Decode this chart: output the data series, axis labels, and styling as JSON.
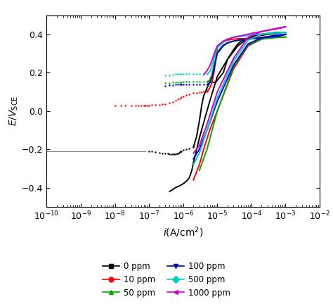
{
  "xlabel": "$i$(A/cm$^2$)",
  "ylabel": "$E/V_\\mathrm{SCE}$",
  "xlim": [
    1e-10,
    0.01
  ],
  "ylim": [
    -0.5,
    0.5
  ],
  "yticks": [
    -0.4,
    -0.2,
    0.0,
    0.2,
    0.4
  ],
  "curves": {
    "0ppm": {
      "color": "black",
      "corr_line": {
        "i": [
          1e-10,
          3e-10,
          1e-09,
          3e-09,
          1e-08,
          3e-08,
          8e-08
        ],
        "E": [
          -0.21,
          -0.21,
          -0.21,
          -0.21,
          -0.21,
          -0.21,
          -0.21
        ]
      },
      "forward_dots": {
        "i": [
          1e-07,
          1.2e-07,
          1.5e-07,
          2e-07,
          2.5e-07,
          3e-07,
          3.5e-07,
          4e-07,
          4.5e-07,
          5e-07,
          5.5e-07,
          6e-07,
          6.5e-07,
          7e-07,
          7.5e-07,
          8e-07,
          8.5e-07,
          9e-07,
          1e-06,
          1.2e-06,
          1.5e-06,
          2e-06
        ],
        "E": [
          -0.21,
          -0.212,
          -0.215,
          -0.218,
          -0.22,
          -0.222,
          -0.223,
          -0.224,
          -0.225,
          -0.225,
          -0.225,
          -0.224,
          -0.222,
          -0.22,
          -0.218,
          -0.215,
          -0.212,
          -0.21,
          -0.205,
          -0.2,
          -0.195,
          -0.19
        ]
      },
      "anodic": {
        "i": [
          2e-06,
          2.5e-06,
          3e-06,
          3.5e-06,
          4e-06,
          4.5e-06,
          5e-06,
          6e-06
        ],
        "E": [
          -0.19,
          -0.13,
          -0.05,
          0.03,
          0.08,
          0.1,
          0.12,
          0.15
        ]
      },
      "transpassive": {
        "i": [
          6e-06,
          7e-06,
          8e-06,
          9e-06,
          1e-05,
          1.5e-05,
          2e-05,
          3e-05,
          4e-05,
          5e-05,
          8e-05,
          0.0001,
          0.0002,
          0.0003,
          0.0005,
          0.0008,
          0.001
        ],
        "E": [
          0.15,
          0.15,
          0.15,
          0.15,
          0.16,
          0.2,
          0.27,
          0.32,
          0.35,
          0.365,
          0.38,
          0.39,
          0.395,
          0.4,
          0.405,
          0.41,
          0.41
        ]
      },
      "reverse": {
        "i": [
          0.001,
          0.0005,
          0.0002,
          8e-05,
          4e-05,
          2e-05,
          1e-05,
          6e-06,
          4e-06,
          3e-06,
          2.5e-06,
          2e-06,
          1.8e-06,
          1.5e-06,
          1.2e-06,
          1e-06,
          8e-07,
          6e-07,
          5e-07,
          4e-07
        ],
        "E": [
          0.41,
          0.41,
          0.4,
          0.38,
          0.34,
          0.27,
          0.18,
          0.05,
          -0.06,
          -0.14,
          -0.2,
          -0.27,
          -0.31,
          -0.35,
          -0.37,
          -0.38,
          -0.39,
          -0.4,
          -0.41,
          -0.42
        ]
      }
    },
    "10ppm": {
      "color": "red",
      "forward_dots": {
        "i": [
          1e-08,
          1.5e-08,
          2e-08,
          3e-08,
          4e-08,
          5e-08,
          6e-08,
          7e-08,
          8e-08,
          9e-08,
          1e-07,
          1.2e-07,
          1.5e-07,
          2e-07,
          2.5e-07,
          3e-07,
          4e-07,
          5e-07,
          6e-07,
          7e-07,
          8e-07,
          9e-07,
          1e-06,
          1.2e-06,
          1.5e-06,
          2e-06,
          2.5e-06,
          3e-06,
          3.5e-06,
          4e-06,
          5e-06
        ],
        "E": [
          0.03,
          0.03,
          0.03,
          0.03,
          0.03,
          0.03,
          0.03,
          0.03,
          0.03,
          0.03,
          0.03,
          0.031,
          0.032,
          0.033,
          0.035,
          0.037,
          0.042,
          0.048,
          0.054,
          0.06,
          0.066,
          0.072,
          0.077,
          0.082,
          0.088,
          0.093,
          0.096,
          0.098,
          0.099,
          0.1,
          0.1
        ]
      },
      "anodic": {
        "i": [
          5e-06,
          6e-06,
          7e-06,
          8e-06,
          9e-06,
          1e-05,
          1.5e-05,
          2e-05,
          3e-05,
          4e-05,
          6e-05,
          8e-05,
          0.0001,
          0.0002,
          0.0004,
          0.0006,
          0.0008,
          0.001
        ],
        "E": [
          0.1,
          0.12,
          0.15,
          0.2,
          0.27,
          0.33,
          0.36,
          0.37,
          0.375,
          0.377,
          0.378,
          0.379,
          0.38,
          0.385,
          0.39,
          0.392,
          0.395,
          0.4
        ]
      },
      "reverse": {
        "i": [
          0.001,
          0.0005,
          0.0002,
          8e-05,
          3e-05,
          1e-05,
          6e-06,
          4e-06,
          3e-06,
          2e-06
        ],
        "E": [
          0.4,
          0.39,
          0.375,
          0.34,
          0.22,
          0.0,
          -0.1,
          -0.2,
          -0.28,
          -0.36
        ]
      }
    },
    "50ppm": {
      "color": "#00aa00",
      "forward_dots": {
        "i": [
          3e-07,
          4e-07,
          5e-07,
          6e-07,
          7e-07,
          8e-07,
          9e-07,
          1e-06,
          1.2e-06,
          1.5e-06,
          2e-06,
          2.5e-06,
          3e-06,
          4e-06,
          5e-06
        ],
        "E": [
          0.145,
          0.147,
          0.149,
          0.15,
          0.151,
          0.151,
          0.151,
          0.152,
          0.152,
          0.152,
          0.152,
          0.152,
          0.152,
          0.152,
          0.152
        ]
      },
      "anodic": {
        "i": [
          5e-06,
          6e-06,
          7e-06,
          8e-06,
          1e-05,
          1.5e-05,
          2e-05,
          3e-05,
          5e-05,
          8e-05,
          0.0001,
          0.0002,
          0.0004,
          0.0006,
          0.0008,
          0.001
        ],
        "E": [
          0.152,
          0.16,
          0.19,
          0.24,
          0.31,
          0.345,
          0.357,
          0.365,
          0.372,
          0.375,
          0.376,
          0.38,
          0.383,
          0.384,
          0.385,
          0.386
        ]
      },
      "reverse": {
        "i": [
          0.001,
          0.0005,
          0.0002,
          8e-05,
          3e-05,
          1e-05,
          5e-06,
          3e-06
        ],
        "E": [
          0.386,
          0.383,
          0.375,
          0.345,
          0.23,
          0.0,
          -0.2,
          -0.31
        ]
      }
    },
    "100ppm": {
      "color": "#0000cc",
      "forward_dots": {
        "i": [
          3e-07,
          4e-07,
          5e-07,
          6e-07,
          7e-07,
          8e-07,
          9e-07,
          1e-06,
          1.2e-06,
          1.5e-06,
          2e-06,
          2.5e-06,
          3e-06,
          4e-06,
          5e-06
        ],
        "E": [
          0.13,
          0.133,
          0.135,
          0.137,
          0.138,
          0.138,
          0.138,
          0.138,
          0.138,
          0.138,
          0.138,
          0.138,
          0.138,
          0.138,
          0.138
        ]
      },
      "anodic": {
        "i": [
          5e-06,
          6e-06,
          7e-06,
          8e-06,
          1e-05,
          1.5e-05,
          2e-05,
          3e-05,
          5e-05,
          8e-05,
          0.0001,
          0.0002,
          0.0004,
          0.0006,
          0.0008,
          0.001
        ],
        "E": [
          0.138,
          0.148,
          0.175,
          0.22,
          0.3,
          0.34,
          0.355,
          0.365,
          0.372,
          0.375,
          0.378,
          0.382,
          0.387,
          0.39,
          0.395,
          0.4
        ]
      },
      "reverse": {
        "i": [
          0.001,
          0.0005,
          0.0002,
          8e-05,
          3e-05,
          1e-05,
          5e-06,
          3e-06,
          2e-06
        ],
        "E": [
          0.4,
          0.395,
          0.382,
          0.35,
          0.24,
          0.05,
          -0.1,
          -0.2,
          -0.25
        ]
      }
    },
    "500ppm": {
      "color": "#00cccc",
      "forward_dots": {
        "i": [
          3e-07,
          4e-07,
          5e-07,
          6e-07,
          7e-07,
          8e-07,
          9e-07,
          1e-06,
          1.2e-06,
          1.5e-06,
          2e-06,
          2.5e-06,
          3e-06,
          4e-06,
          5e-06
        ],
        "E": [
          0.185,
          0.188,
          0.19,
          0.192,
          0.192,
          0.192,
          0.192,
          0.192,
          0.192,
          0.192,
          0.192,
          0.192,
          0.192,
          0.192,
          0.192
        ]
      },
      "anodic": {
        "i": [
          5e-06,
          6e-06,
          7e-06,
          8e-06,
          1e-05,
          1.5e-05,
          2e-05,
          3e-05,
          5e-05,
          8e-05,
          0.0001,
          0.0002,
          0.0004,
          0.0006,
          0.0008,
          0.001
        ],
        "E": [
          0.192,
          0.205,
          0.235,
          0.275,
          0.33,
          0.36,
          0.375,
          0.385,
          0.39,
          0.395,
          0.398,
          0.402,
          0.406,
          0.408,
          0.41,
          0.41
        ]
      },
      "reverse": {
        "i": [
          0.001,
          0.0005,
          0.0002,
          8e-05,
          3e-05,
          1e-05,
          5e-06,
          3e-06,
          2e-06
        ],
        "E": [
          0.41,
          0.408,
          0.4,
          0.37,
          0.26,
          0.07,
          -0.1,
          -0.22,
          -0.28
        ]
      }
    },
    "1000ppm": {
      "color": "#cc00cc",
      "anodic": {
        "i": [
          4e-06,
          5e-06,
          6e-06,
          7e-06,
          8e-06,
          1e-05,
          1.5e-05,
          2e-05,
          3e-05,
          5e-05,
          8e-05,
          0.0001,
          0.0002,
          0.0004,
          0.0006,
          0.0008,
          0.001
        ],
        "E": [
          0.19,
          0.21,
          0.235,
          0.265,
          0.295,
          0.34,
          0.365,
          0.375,
          0.385,
          0.393,
          0.4,
          0.405,
          0.415,
          0.425,
          0.43,
          0.435,
          0.44
        ]
      },
      "reverse": {
        "i": [
          0.001,
          0.0005,
          0.0002,
          8e-05,
          3e-05,
          1e-05,
          5e-06,
          3e-06,
          2e-06
        ],
        "E": [
          0.44,
          0.43,
          0.415,
          0.385,
          0.275,
          0.1,
          -0.07,
          -0.18,
          -0.22
        ]
      }
    }
  },
  "legend_entries": [
    {
      "label": "0 ppm",
      "color": "black",
      "marker": "s"
    },
    {
      "label": "10 ppm",
      "color": "red",
      "marker": "o"
    },
    {
      "label": "50 ppm",
      "color": "#00aa00",
      "marker": "^"
    },
    {
      "label": "100 ppm",
      "color": "#0000cc",
      "marker": "v"
    },
    {
      "label": "500 ppm",
      "color": "#00cccc",
      "marker": "D"
    },
    {
      "label": "1000 ppm",
      "color": "#cc00cc",
      "marker": "<"
    }
  ]
}
